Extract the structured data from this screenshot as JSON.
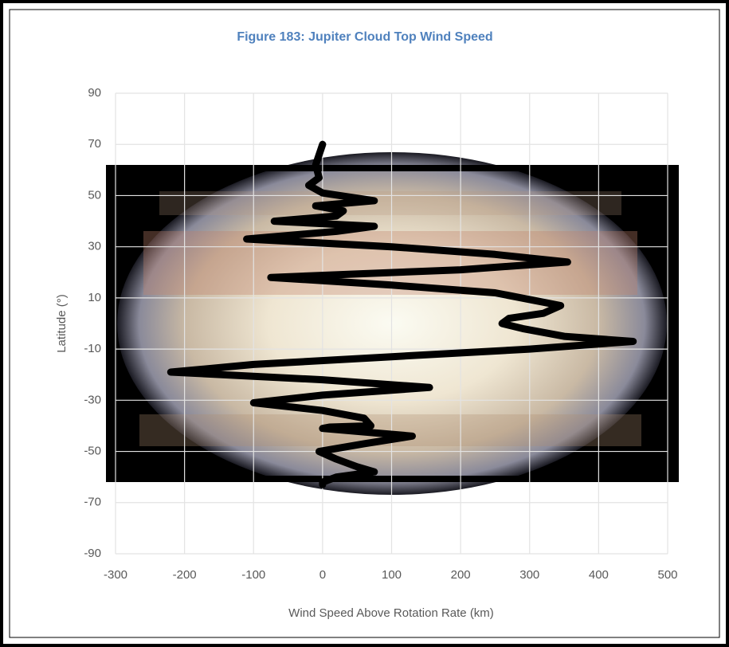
{
  "chart_data": {
    "type": "line",
    "title": "Figure 183: Jupiter Cloud Top Wind Speed",
    "x_label": "Wind Speed Above Rotation Rate (km)",
    "y_label": "Latitude (°)",
    "color": "#000000",
    "grid": true,
    "xlim": [
      -300,
      500
    ],
    "xticks": [
      -300,
      -200,
      -100,
      0,
      100,
      200,
      300,
      400,
      500
    ],
    "ylim": [
      -90,
      90
    ],
    "yticks": [
      90,
      70,
      50,
      30,
      10,
      -10,
      -30,
      -50,
      -70,
      -90
    ],
    "x": [
      0,
      -10,
      -5,
      -20,
      0,
      75,
      -10,
      30,
      20,
      -70,
      75,
      20,
      -110,
      100,
      250,
      355,
      200,
      -75,
      100,
      250,
      345,
      320,
      270,
      260,
      290,
      350,
      450,
      300,
      100,
      -100,
      -220,
      0,
      155,
      0,
      -100,
      0,
      60,
      70,
      10,
      0,
      130,
      60,
      -5,
      20,
      50,
      75,
      20,
      0,
      0
    ],
    "values": [
      70,
      62,
      57,
      54,
      51,
      48,
      46,
      44,
      42,
      40,
      38,
      36,
      33,
      30,
      27,
      24,
      21,
      18,
      15,
      12,
      7,
      4,
      2,
      0,
      -2,
      -5,
      -7,
      -10,
      -13,
      -16,
      -19,
      -22,
      -25,
      -28,
      -31,
      -34,
      -37,
      -40,
      -40.5,
      -41,
      -44,
      -47,
      -50,
      -53,
      -56,
      -58,
      -60,
      -62,
      -63
    ]
  }
}
